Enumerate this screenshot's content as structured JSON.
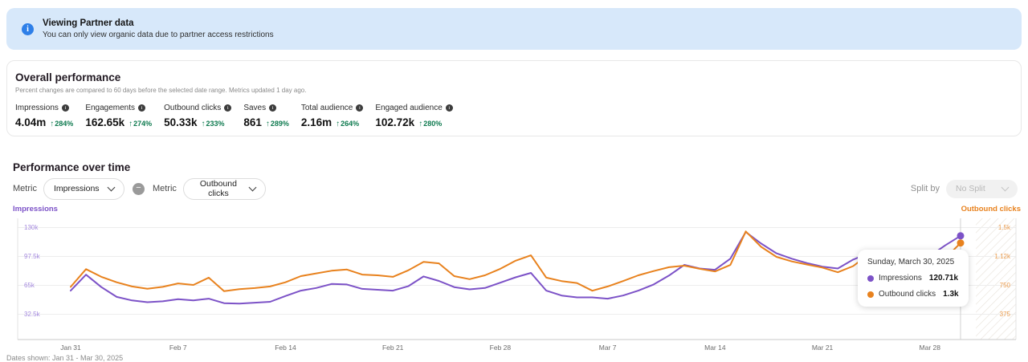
{
  "banner": {
    "title": "Viewing Partner data",
    "subtitle": "You can only view organic data due to partner access restrictions"
  },
  "overall": {
    "title": "Overall performance",
    "subtitle": "Percent changes are compared to 60 days before the selected date range. Metrics updated 1 day ago.",
    "metrics": [
      {
        "label": "Impressions",
        "value": "4.04m",
        "change": "284%"
      },
      {
        "label": "Engagements",
        "value": "162.65k",
        "change": "274%"
      },
      {
        "label": "Outbound clicks",
        "value": "50.33k",
        "change": "233%"
      },
      {
        "label": "Saves",
        "value": "861",
        "change": "289%"
      },
      {
        "label": "Total audience",
        "value": "2.16m",
        "change": "264%"
      },
      {
        "label": "Engaged audience",
        "value": "102.72k",
        "change": "280%"
      }
    ]
  },
  "performance": {
    "title": "Performance over time",
    "metric_label_1": "Metric",
    "metric_1": "Impressions",
    "metric_label_2": "Metric",
    "metric_2": "Outbound clicks",
    "split_label": "Split by",
    "split_value": "No Split"
  },
  "icons": {
    "info": "i",
    "up_arrow": "↑",
    "minus": "−"
  },
  "colors": {
    "impressions": "#7C52C7",
    "impressions_tick": "#A489DE",
    "outbound": "#E8821E",
    "outbound_tick": "#EB9C4D",
    "positive_green": "#0E7A4F",
    "banner_bg": "#D7E8FA",
    "banner_icon_blue": "#2E7FE8"
  },
  "tooltip": {
    "date": "Sunday, March 30, 2025",
    "rows": [
      {
        "label": "Impressions",
        "value": "120.71k",
        "color": "#7C52C7"
      },
      {
        "label": "Outbound clicks",
        "value": "1.3k",
        "color": "#E8821E"
      }
    ]
  },
  "chart_data": {
    "type": "line",
    "title": "Performance over time",
    "x_start": "Jan 31, 2025",
    "x_end": "Mar 30, 2025",
    "points": 59,
    "x_tick_labels": [
      "Jan 31",
      "Feb 7",
      "Feb 14",
      "Feb 21",
      "Feb 28",
      "Mar 7",
      "Mar 14",
      "Mar 21",
      "Mar 28"
    ],
    "grid": "horizontal",
    "future_region": "hatched area after last data point (Mar 30)",
    "left_axis": {
      "label": "Impressions",
      "tick_labels_top_to_bottom": [
        "130k",
        "97.5k",
        "65k",
        "32.5k"
      ],
      "range_hint": [
        32500,
        130000
      ]
    },
    "right_axis": {
      "label": "Outbound clicks",
      "tick_labels_top_to_bottom": [
        "1.5k",
        "1.12k",
        "750",
        "375"
      ],
      "range_hint": [
        375,
        1500
      ]
    },
    "series": [
      {
        "name": "Impressions",
        "axis": "left",
        "color": "#7C52C7",
        "values": [
          59000,
          77000,
          63000,
          52000,
          48000,
          46000,
          47000,
          49500,
          48000,
          50000,
          45000,
          44500,
          45500,
          46500,
          53000,
          59000,
          62000,
          66500,
          66000,
          61000,
          60000,
          59000,
          64000,
          75000,
          70000,
          63000,
          60500,
          62000,
          68000,
          74000,
          79000,
          59000,
          53500,
          51500,
          51500,
          50000,
          53500,
          59000,
          66000,
          76000,
          88000,
          84000,
          82500,
          95000,
          125000,
          112000,
          101000,
          95000,
          90000,
          86000,
          84000,
          94000,
          101000,
          95000,
          90000,
          92000,
          98000,
          110000,
          120710
        ]
      },
      {
        "name": "Outbound clicks",
        "axis": "right",
        "color": "#E8821E",
        "values": [
          730,
          960,
          860,
          790,
          735,
          705,
          730,
          775,
          755,
          850,
          675,
          700,
          715,
          735,
          790,
          870,
          905,
          940,
          955,
          890,
          880,
          860,
          945,
          1055,
          1035,
          870,
          830,
          880,
          965,
          1070,
          1140,
          850,
          805,
          780,
          680,
          735,
          805,
          880,
          935,
          985,
          1005,
          965,
          930,
          1015,
          1450,
          1250,
          1120,
          1060,
          1020,
          980,
          920,
          1000,
          1150,
          1050,
          980,
          950,
          1000,
          1100,
          1300
        ]
      }
    ],
    "highlighted_point": {
      "date": "Sunday, March 30, 2025",
      "impressions": "120.71k",
      "outbound_clicks": "1.3k"
    }
  },
  "footer_caption": "Dates shown: Jan 31 - Mar 30, 2025"
}
